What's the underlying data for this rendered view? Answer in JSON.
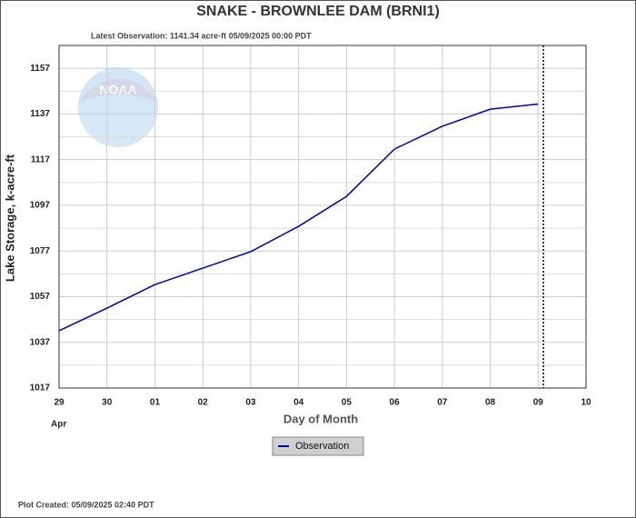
{
  "chart_data": {
    "type": "line",
    "title": "SNAKE - BROWNLEE DAM  (BRNI1)",
    "subtitle": "Latest Observation: 1141.34 acre-ft 05/09/2025 00:00 PDT",
    "y_label": "Lake Storage, k-acre-ft",
    "x_label": "Day of Month",
    "x_sublabel": "Apr",
    "footer": "Plot Created: 05/09/2025 02:40 PDT",
    "x": [
      0,
      1,
      2,
      3,
      4,
      5,
      6,
      7,
      8,
      9,
      10
    ],
    "series": [
      {
        "name": "Observation",
        "color": "#0000b0",
        "values": [
          1042.1,
          1052.0,
          1062.3,
          1069.5,
          1076.7,
          1087.8,
          1100.9,
          1121.6,
          1131.6,
          1139.1,
          1141.34
        ]
      }
    ],
    "xlim": [
      0,
      11
    ],
    "xticks": [
      {
        "value": 0,
        "label": "29"
      },
      {
        "value": 1,
        "label": "30"
      },
      {
        "value": 2,
        "label": "01"
      },
      {
        "value": 3,
        "label": "02"
      },
      {
        "value": 4,
        "label": "03"
      },
      {
        "value": 5,
        "label": "04"
      },
      {
        "value": 6,
        "label": "05"
      },
      {
        "value": 7,
        "label": "06"
      },
      {
        "value": 8,
        "label": "07"
      },
      {
        "value": 9,
        "label": "08"
      },
      {
        "value": 10,
        "label": "09"
      },
      {
        "value": 11,
        "label": "10"
      }
    ],
    "ylim": [
      1017,
      1167
    ],
    "yticks": [
      1017,
      1037,
      1057,
      1077,
      1097,
      1117,
      1137,
      1157
    ],
    "minor_yticks": [
      1027,
      1047,
      1067,
      1087,
      1107,
      1127,
      1147
    ],
    "now_x": 10.11,
    "grid": true
  }
}
